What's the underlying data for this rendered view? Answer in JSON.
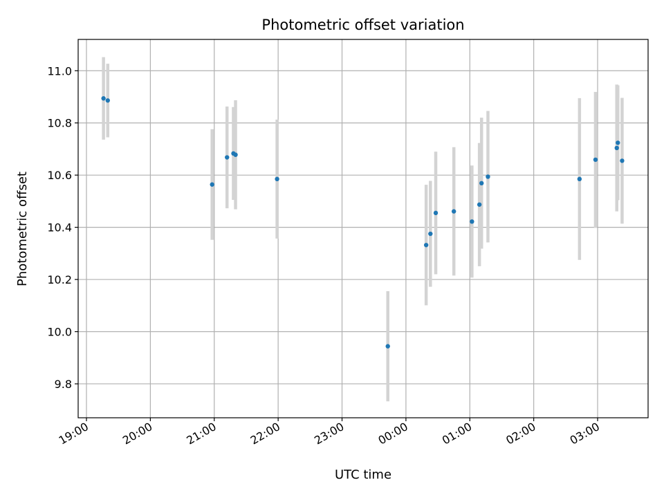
{
  "chart_data": {
    "type": "scatter",
    "title": "Photometric offset variation",
    "xlabel": "UTC time",
    "ylabel": "Photometric offset",
    "x_unit": "UTC time of day (night of observation; hours after 24:00 continue past midnight)",
    "xlim_hours": [
      18.87,
      27.79
    ],
    "ylim": [
      9.67,
      11.12
    ],
    "grid": true,
    "colors": {
      "point": "#1f77b4",
      "error_bar": "#d3d3d3"
    },
    "x_ticks": [
      {
        "hours": 19,
        "label": "19:00"
      },
      {
        "hours": 20,
        "label": "20:00"
      },
      {
        "hours": 21,
        "label": "21:00"
      },
      {
        "hours": 22,
        "label": "22:00"
      },
      {
        "hours": 23,
        "label": "23:00"
      },
      {
        "hours": 24,
        "label": "00:00"
      },
      {
        "hours": 25,
        "label": "01:00"
      },
      {
        "hours": 26,
        "label": "02:00"
      },
      {
        "hours": 27,
        "label": "03:00"
      }
    ],
    "y_ticks": [
      {
        "value": 9.8,
        "label": "9.8"
      },
      {
        "value": 10.0,
        "label": "10.0"
      },
      {
        "value": 10.2,
        "label": "10.2"
      },
      {
        "value": 10.4,
        "label": "10.4"
      },
      {
        "value": 10.6,
        "label": "10.6"
      },
      {
        "value": 10.8,
        "label": "10.8"
      },
      {
        "value": 11.0,
        "label": "11.0"
      }
    ],
    "points": [
      {
        "time": "19:16",
        "y": 10.894,
        "yerr": 0.158
      },
      {
        "time": "19:20",
        "y": 10.886,
        "yerr": 0.141
      },
      {
        "time": "20:58",
        "y": 10.564,
        "yerr": 0.212
      },
      {
        "time": "21:12",
        "y": 10.668,
        "yerr": 0.195
      },
      {
        "time": "21:18",
        "y": 10.683,
        "yerr": 0.178
      },
      {
        "time": "21:20",
        "y": 10.678,
        "yerr": 0.209
      },
      {
        "time": "21:59",
        "y": 10.585,
        "yerr": 0.228
      },
      {
        "time": "23:43",
        "y": 9.944,
        "yerr": 0.211
      },
      {
        "time": "00:19",
        "y": 10.332,
        "yerr": 0.231
      },
      {
        "time": "00:23",
        "y": 10.375,
        "yerr": 0.203
      },
      {
        "time": "00:28",
        "y": 10.455,
        "yerr": 0.235
      },
      {
        "time": "00:45",
        "y": 10.461,
        "yerr": 0.246
      },
      {
        "time": "01:02",
        "y": 10.422,
        "yerr": 0.215
      },
      {
        "time": "01:09",
        "y": 10.487,
        "yerr": 0.236
      },
      {
        "time": "01:11",
        "y": 10.569,
        "yerr": 0.251
      },
      {
        "time": "01:17",
        "y": 10.594,
        "yerr": 0.252
      },
      {
        "time": "02:43",
        "y": 10.585,
        "yerr": 0.31
      },
      {
        "time": "02:58",
        "y": 10.659,
        "yerr": 0.26
      },
      {
        "time": "03:18",
        "y": 10.704,
        "yerr": 0.243
      },
      {
        "time": "03:19",
        "y": 10.724,
        "yerr": 0.22
      },
      {
        "time": "03:23",
        "y": 10.655,
        "yerr": 0.241
      }
    ]
  }
}
